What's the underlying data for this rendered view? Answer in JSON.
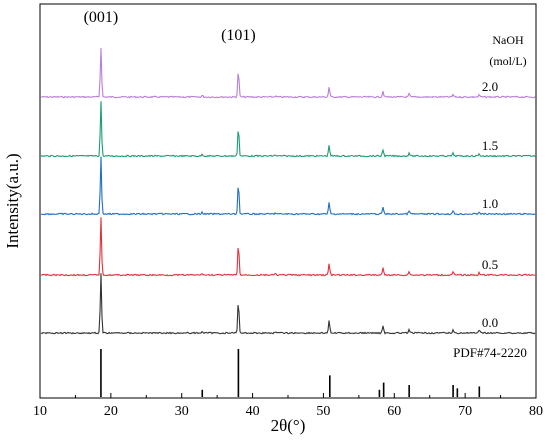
{
  "chart_data": {
    "type": "line",
    "xlabel": "2θ(°)",
    "ylabel": "Intensity(a.u.)",
    "xlim": [
      10,
      80
    ],
    "x_ticks": [
      "10",
      "20",
      "30",
      "40",
      "50",
      "60",
      "70",
      "80"
    ],
    "grid": false,
    "legend": {
      "title_line1": "NaOH",
      "title_line2": "(mol/L)"
    },
    "peak_annotations": [
      {
        "label": "(001)",
        "x": 18.6
      },
      {
        "label": "(101)",
        "x": 38.0
      }
    ],
    "peaks": [
      {
        "x": 18.6,
        "rel": 1.0
      },
      {
        "x": 32.9,
        "rel": 0.03
      },
      {
        "x": 38.0,
        "rel": 0.55
      },
      {
        "x": 43.2,
        "rel": 0.02
      },
      {
        "x": 50.8,
        "rel": 0.2
      },
      {
        "x": 58.4,
        "rel": 0.12
      },
      {
        "x": 62.1,
        "rel": 0.06
      },
      {
        "x": 68.3,
        "rel": 0.05
      },
      {
        "x": 72.0,
        "rel": 0.04
      }
    ],
    "series": [
      {
        "name": "2.0",
        "color": "#b77fd6"
      },
      {
        "name": "1.5",
        "color": "#1a9e6e"
      },
      {
        "name": "1.0",
        "color": "#1f6fc5"
      },
      {
        "name": "0.5",
        "color": "#e3313a"
      },
      {
        "name": "0.0",
        "color": "#333333"
      }
    ],
    "reference": {
      "name": "PDF#74-2220",
      "x": [
        18.6,
        32.9,
        38.0,
        50.9,
        57.9,
        58.5,
        62.1,
        68.3,
        68.9,
        72.0
      ],
      "rel": [
        1.0,
        0.15,
        1.0,
        0.45,
        0.15,
        0.3,
        0.25,
        0.25,
        0.18,
        0.22
      ]
    }
  }
}
